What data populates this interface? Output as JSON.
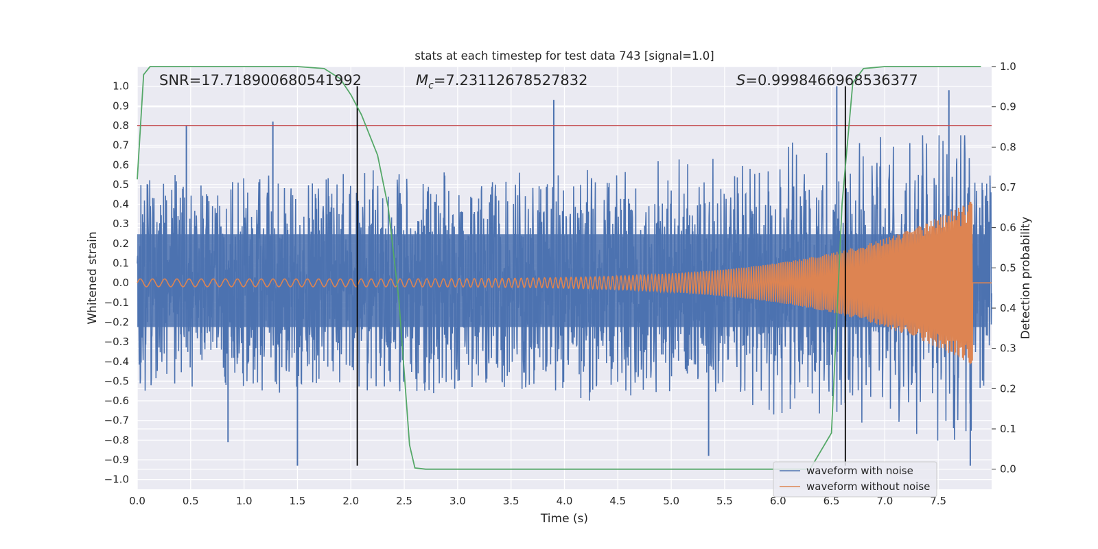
{
  "chart_data": {
    "type": "line",
    "title": "stats at each timestep for test data 743 [signal=1.0]",
    "xlabel": "Time (s)",
    "ylabel": "Whitened strain",
    "ylabel_right": "Detection probability",
    "xlim": [
      0.0,
      8.0
    ],
    "ylim": [
      -1.05,
      1.1
    ],
    "ylim_right": [
      -0.05,
      1.0
    ],
    "xticks": [
      "0.0",
      "0.5",
      "1.0",
      "1.5",
      "2.0",
      "2.5",
      "3.0",
      "3.5",
      "4.0",
      "4.5",
      "5.0",
      "5.5",
      "6.0",
      "6.5",
      "7.0",
      "7.5"
    ],
    "yticks": [
      "1.0",
      "0.9",
      "0.8",
      "0.7",
      "0.6",
      "0.5",
      "0.4",
      "0.3",
      "0.2",
      "0.1",
      "0.0",
      "−0.1",
      "−0.2",
      "−0.3",
      "−0.4",
      "−0.5",
      "−0.6",
      "−0.7",
      "−0.8",
      "−0.9",
      "−1.0"
    ],
    "yticks_right": [
      "1.0",
      "0.9",
      "0.8",
      "0.7",
      "0.6",
      "0.5",
      "0.4",
      "0.3",
      "0.2",
      "0.1",
      "0.0"
    ],
    "annotations": {
      "snr": "SNR=17.718900680541992",
      "mc_symbol": "M",
      "mc_sub": "c",
      "mc_value": "=7.23112678527832",
      "s_symbol": "S",
      "s_value": "=0.9998466968536377"
    },
    "series": [
      {
        "name": "waveform with noise",
        "color": "#4c72b0",
        "envelope_pos": 0.55,
        "envelope_neg": -0.5,
        "peaks": [
          [
            0.46,
            0.8
          ],
          [
            1.27,
            0.82
          ],
          [
            3.9,
            0.93
          ],
          [
            6.55,
            1.0
          ],
          [
            7.6,
            0.98
          ],
          [
            1.5,
            -0.93
          ],
          [
            0.85,
            -0.81
          ],
          [
            5.35,
            -0.88
          ],
          [
            7.8,
            -0.93
          ]
        ]
      },
      {
        "name": "waveform without noise",
        "color": "#dd8452",
        "chirp_start_amp": 0.02,
        "chirp_end_amp": 0.42,
        "merger_time": 7.82
      },
      {
        "name": "detection probability",
        "color": "#55a868",
        "axis": "right",
        "x": [
          0.0,
          0.06,
          0.12,
          0.2,
          1.5,
          1.75,
          1.9,
          2.0,
          2.1,
          2.25,
          2.35,
          2.45,
          2.55,
          2.6,
          2.7,
          5.5,
          6.3,
          6.5,
          6.6,
          6.7,
          6.8,
          7.0,
          7.9
        ],
        "y": [
          0.72,
          0.98,
          1.0,
          1.0,
          1.0,
          0.995,
          0.97,
          0.93,
          0.88,
          0.78,
          0.65,
          0.42,
          0.06,
          0.003,
          0.0,
          0.0,
          0.0,
          0.09,
          0.66,
          0.96,
          0.995,
          1.0,
          1.0
        ]
      }
    ],
    "hlines": [
      {
        "y": 0.8,
        "color": "#c44e52"
      }
    ],
    "vlines": [
      {
        "x": 2.06,
        "color": "#000000"
      },
      {
        "x": 6.63,
        "color": "#000000"
      }
    ],
    "legend_placement": "lower-right",
    "grid": true
  }
}
